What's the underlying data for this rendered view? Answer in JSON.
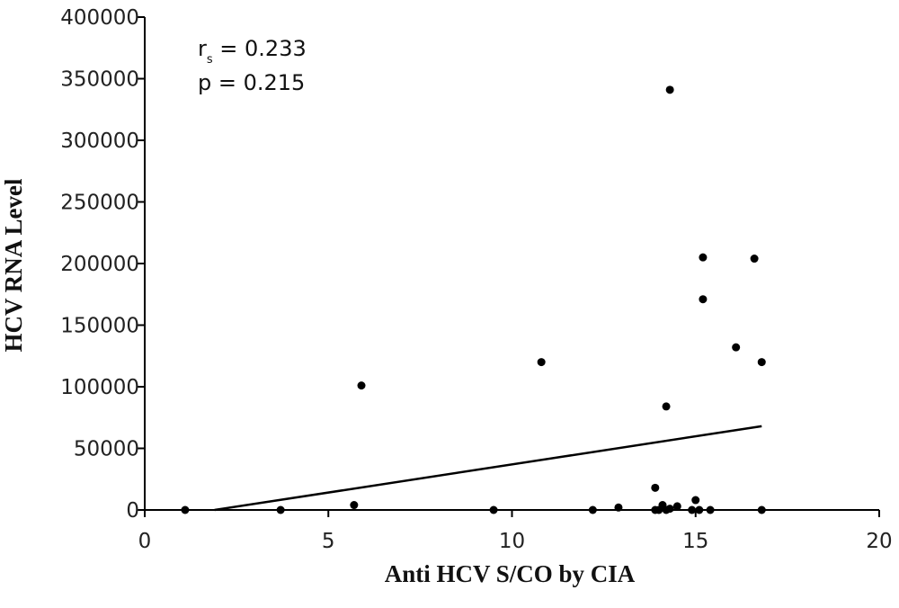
{
  "chart_data": {
    "type": "scatter",
    "title": "",
    "xlabel": "Anti HCV S/CO by CIA",
    "ylabel": "HCV RNA Level",
    "xlim": [
      0,
      20
    ],
    "ylim": [
      0,
      400000
    ],
    "x_ticks": [
      "0",
      "5",
      "10",
      "15",
      "20"
    ],
    "y_ticks": [
      "0",
      "50000",
      "100000",
      "150000",
      "200000",
      "250000",
      "300000",
      "350000",
      "400000"
    ],
    "grid": false,
    "legend": "none",
    "annotations": {
      "rs_main": "r",
      "rs_sub": "s",
      "rs_value": " = 0.233",
      "p_text": "p = 0.215"
    },
    "points": [
      {
        "x": 1.1,
        "y": 0
      },
      {
        "x": 3.7,
        "y": 0
      },
      {
        "x": 5.7,
        "y": 4000
      },
      {
        "x": 5.9,
        "y": 101000
      },
      {
        "x": 9.5,
        "y": 0
      },
      {
        "x": 10.8,
        "y": 120000
      },
      {
        "x": 12.2,
        "y": 0
      },
      {
        "x": 12.9,
        "y": 2000
      },
      {
        "x": 13.9,
        "y": 18000
      },
      {
        "x": 13.9,
        "y": 0
      },
      {
        "x": 14.0,
        "y": 0
      },
      {
        "x": 14.1,
        "y": 4000
      },
      {
        "x": 14.2,
        "y": 84000
      },
      {
        "x": 14.2,
        "y": 0
      },
      {
        "x": 14.3,
        "y": 341000
      },
      {
        "x": 14.3,
        "y": 1000
      },
      {
        "x": 14.5,
        "y": 3000
      },
      {
        "x": 14.9,
        "y": 0
      },
      {
        "x": 15.0,
        "y": 8000
      },
      {
        "x": 15.1,
        "y": 0
      },
      {
        "x": 15.2,
        "y": 205000
      },
      {
        "x": 15.2,
        "y": 171000
      },
      {
        "x": 15.4,
        "y": 0
      },
      {
        "x": 16.1,
        "y": 132000
      },
      {
        "x": 16.6,
        "y": 204000
      },
      {
        "x": 16.8,
        "y": 120000
      },
      {
        "x": 16.8,
        "y": 0
      }
    ],
    "trend_line": {
      "x": [
        1.9,
        16.8
      ],
      "y": [
        0,
        68000
      ]
    },
    "colors": {
      "points": "#000000",
      "line": "#000000",
      "axis": "#000000"
    }
  }
}
